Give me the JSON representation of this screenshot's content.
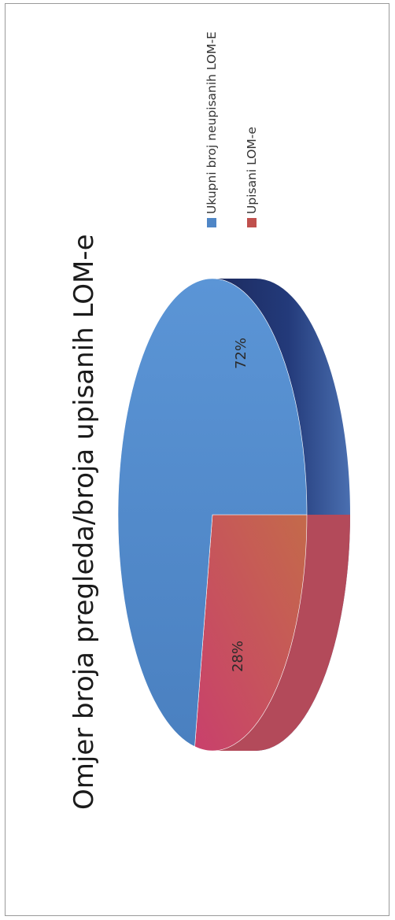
{
  "chart_data": {
    "type": "pie",
    "title": "Omjer broja pregleda/broja upisanih LOM-e",
    "slices": [
      {
        "label": "Ukupni broj neupisanih LOM-E",
        "value": 72,
        "value_label": "72%",
        "color": "#4f86c6"
      },
      {
        "label": "Upisani LOM-e",
        "value": 28,
        "value_label": "28%",
        "color": "#c0504d"
      }
    ],
    "legend_position": "top-right",
    "three_d": true
  }
}
